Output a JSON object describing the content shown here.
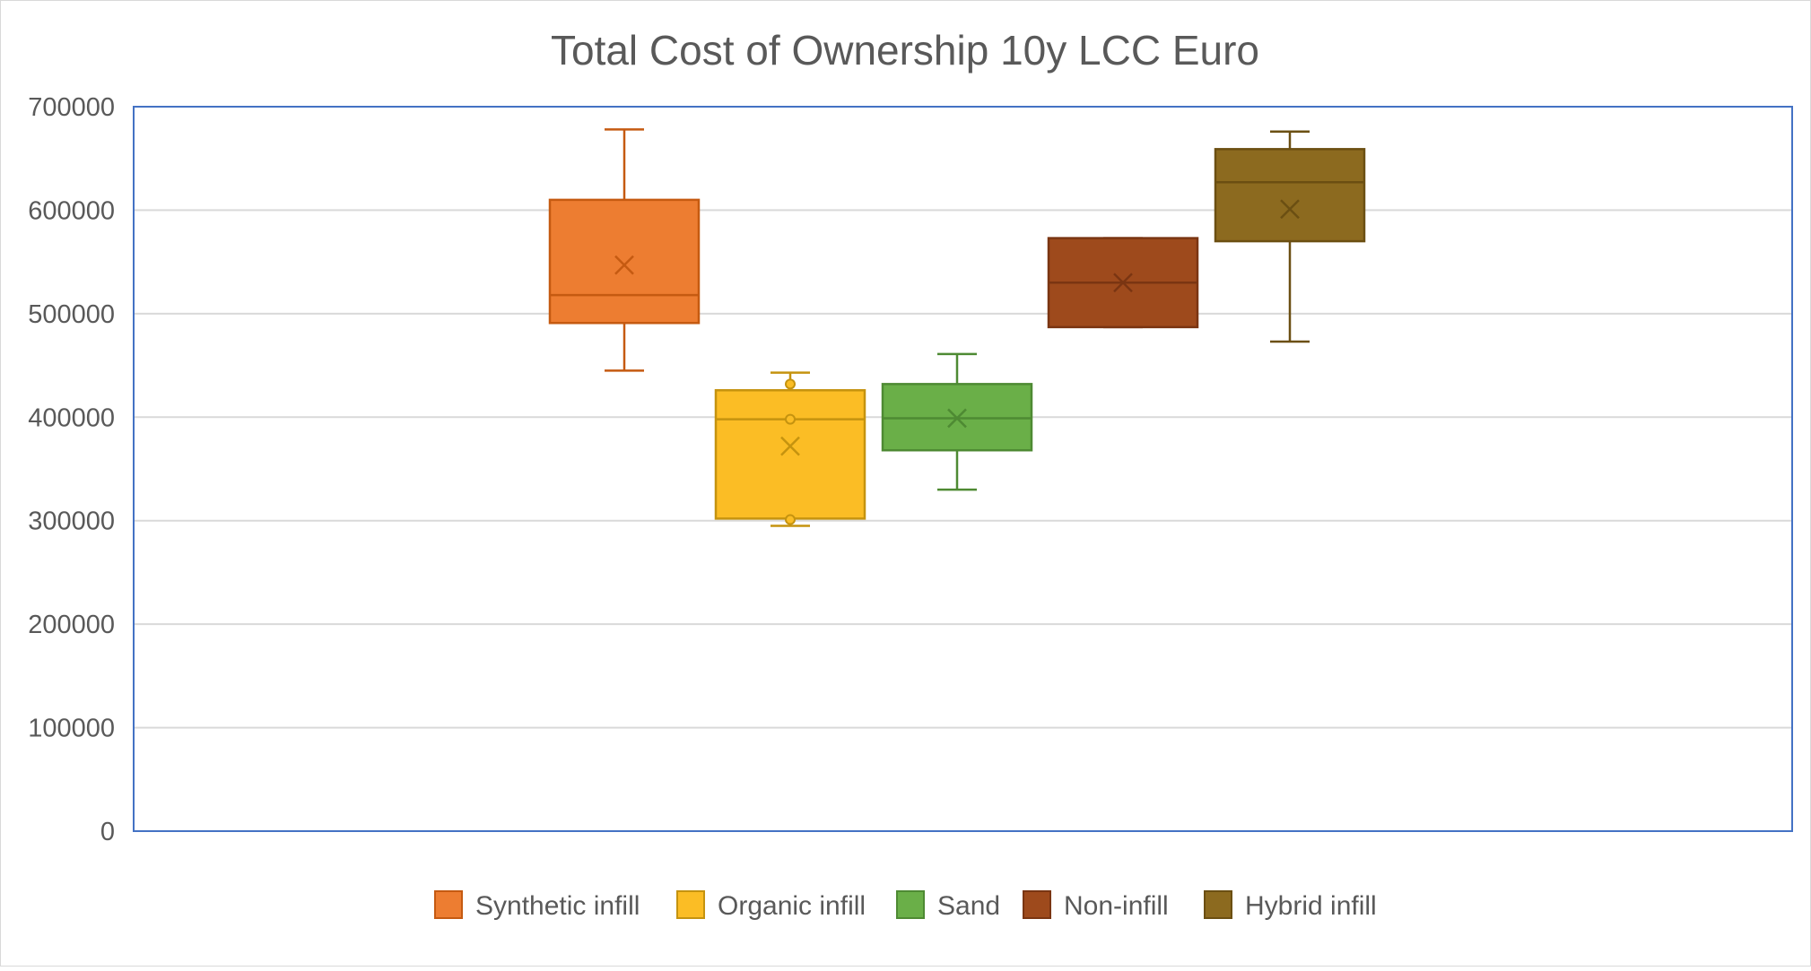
{
  "chart_data": {
    "type": "box",
    "title": "Total Cost of Ownership 10y LCC Euro",
    "xlabel": "",
    "ylabel": "",
    "ylim": [
      0,
      700000
    ],
    "yticks": [
      0,
      100000,
      200000,
      300000,
      400000,
      500000,
      600000,
      700000
    ],
    "ytick_labels": [
      "0",
      "100000",
      "200000",
      "300000",
      "400000",
      "500000",
      "600000",
      "700000"
    ],
    "grid": true,
    "legend_position": "bottom",
    "series": [
      {
        "name": "Synthetic infill",
        "color": "#ED7D31",
        "stroke": "#C55A11",
        "min": 445000,
        "q1": 491000,
        "median": 518000,
        "q3": 610000,
        "max": 678000,
        "mean": 547000,
        "points": []
      },
      {
        "name": "Organic infill",
        "color": "#FBBD25",
        "stroke": "#C5930F",
        "min": 295000,
        "q1": 302000,
        "median": 398000,
        "q3": 426000,
        "max": 443000,
        "mean": 372000,
        "points": [
          432000,
          398000,
          301000
        ]
      },
      {
        "name": "Sand",
        "color": "#6AAF48",
        "stroke": "#4E8A33",
        "min": 330000,
        "q1": 368000,
        "median": 399000,
        "q3": 432000,
        "max": 461000,
        "mean": 399000,
        "points": []
      },
      {
        "name": "Non-infill",
        "color": "#9E4A1C",
        "stroke": "#7A3512",
        "min": 487000,
        "q1": 487000,
        "median": 530000,
        "q3": 573000,
        "max": 573000,
        "mean": 530000,
        "points": []
      },
      {
        "name": "Hybrid infill",
        "color": "#8C6A1F",
        "stroke": "#6B4F12",
        "min": 473000,
        "q1": 570000,
        "median": 627000,
        "q3": 659000,
        "max": 676000,
        "mean": 601000,
        "points": []
      }
    ]
  }
}
